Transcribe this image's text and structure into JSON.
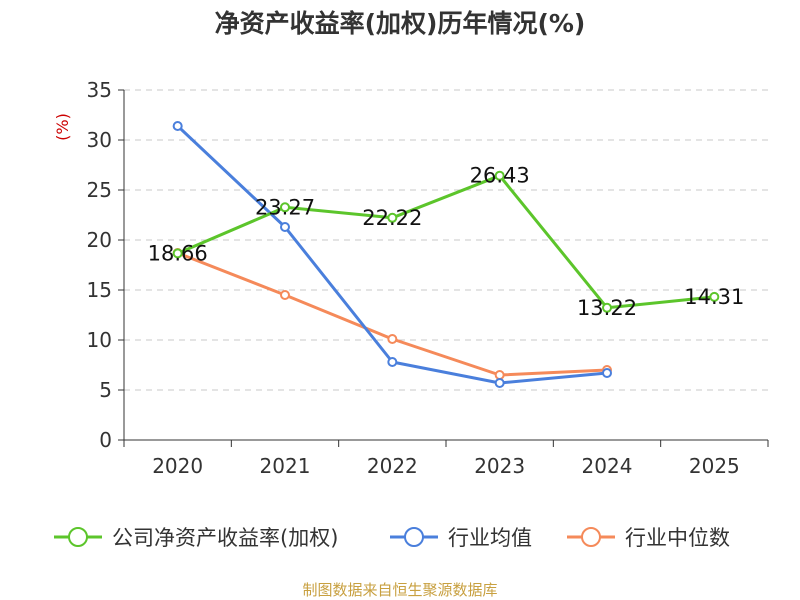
{
  "chart_data": {
    "type": "line",
    "title": "净资产收益率(加权)历年情况(%)",
    "ylabel": "(%)",
    "xlabel": "",
    "categories": [
      "2020",
      "2021",
      "2022",
      "2023",
      "2024",
      "2025"
    ],
    "ylim": [
      0,
      35
    ],
    "yticks": [
      0,
      5,
      10,
      15,
      20,
      25,
      30,
      35
    ],
    "grid": true,
    "legend_position": "bottom",
    "series": [
      {
        "name": "公司净资产收益率(加权)",
        "color": "#5cc52b",
        "values": [
          18.66,
          23.27,
          22.22,
          26.43,
          13.22,
          14.31
        ],
        "show_labels": true
      },
      {
        "name": "行业均值",
        "color": "#4a7fdc",
        "values": [
          31.4,
          21.3,
          7.8,
          5.7,
          6.7,
          null
        ],
        "show_labels": false
      },
      {
        "name": "行业中位数",
        "color": "#f58a5a",
        "values": [
          18.7,
          14.5,
          10.1,
          6.5,
          7.0,
          null
        ],
        "show_labels": false
      }
    ],
    "source": "制图数据来自恒生聚源数据库"
  }
}
